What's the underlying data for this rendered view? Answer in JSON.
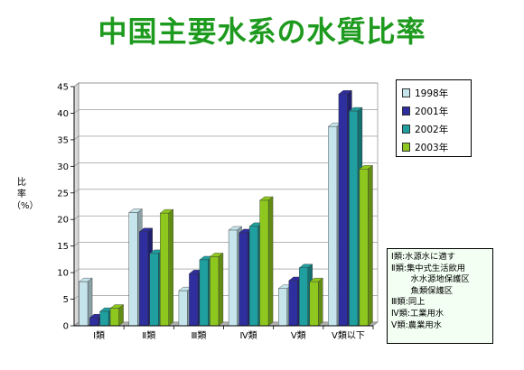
{
  "title": "中国主要水系の水質比率",
  "chart_data": {
    "type": "bar",
    "categories": [
      "Ⅰ類",
      "Ⅱ類",
      "Ⅲ類",
      "Ⅳ類",
      "Ⅴ類",
      "Ⅴ類以下"
    ],
    "series": [
      {
        "name": "1998年",
        "color": "#c5e4ec",
        "values": [
          8.3,
          21.3,
          6.6,
          18.0,
          7.0,
          37.5
        ]
      },
      {
        "name": "2001年",
        "color": "#2e2e9e",
        "values": [
          1.5,
          17.7,
          9.8,
          17.5,
          8.5,
          43.6
        ]
      },
      {
        "name": "2002年",
        "color": "#1f9f9f",
        "values": [
          2.7,
          13.6,
          12.4,
          18.7,
          10.9,
          40.4
        ]
      },
      {
        "name": "2003年",
        "color": "#8ec81e",
        "values": [
          3.3,
          21.2,
          13.0,
          23.6,
          8.3,
          29.5
        ]
      }
    ],
    "ylabel": [
      "比",
      "率",
      "（%）"
    ],
    "ylim": [
      0,
      45
    ],
    "yticks": [
      0,
      5,
      10,
      15,
      20,
      25,
      30,
      35,
      40,
      45
    ],
    "grid": true,
    "legend_position": "right"
  },
  "note": {
    "lines": [
      "Ⅰ類:水源水に適す",
      "Ⅱ類:集中式生活飲用",
      "　　 水水源地保護区",
      "　　 魚類保護区",
      "Ⅲ類:同上",
      "Ⅳ類:工業用水",
      "Ⅴ類:農業用水"
    ]
  }
}
